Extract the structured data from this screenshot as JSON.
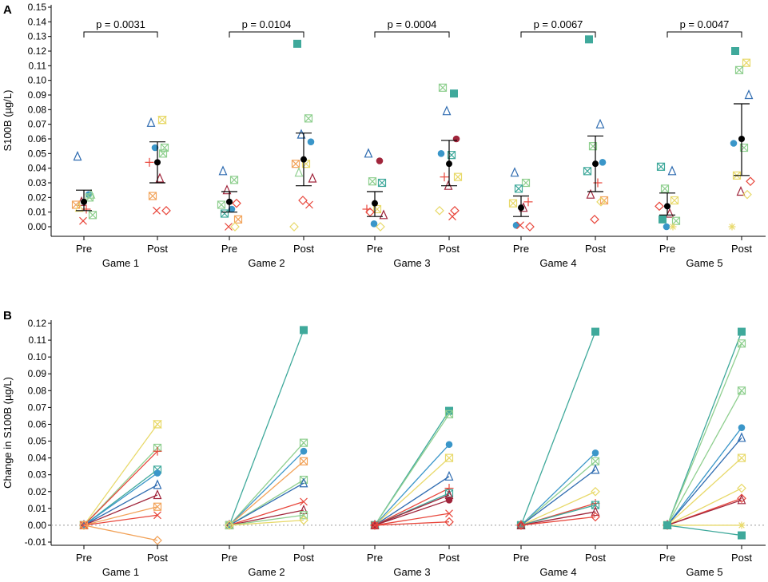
{
  "colors": [
    "#2e6bb0",
    "#3fa99b",
    "#8fcf8f",
    "#f2a35a",
    "#e8473c",
    "#a0253b",
    "#3a96c9",
    "#e8d96a"
  ],
  "chart_data": [
    {
      "panel": "A",
      "type": "scatter",
      "ylabel": "S100B (µg/L)",
      "ylim": [
        0,
        0.15
      ],
      "ytick_labels": [
        "0.00",
        "0.01",
        "0.02",
        "0.03",
        "0.04",
        "0.05",
        "0.06",
        "0.07",
        "0.08",
        "0.09",
        "0.10",
        "0.11",
        "0.12",
        "0.13",
        "0.14",
        "0.15"
      ],
      "categories": [
        "Pre",
        "Post"
      ],
      "games": [
        {
          "name": "Game 1",
          "p_label": "p = 0.0031",
          "pre": {
            "mean": 0.017,
            "err": [
              0.011,
              0.025
            ],
            "points": [
              [
                0.048,
                "tri",
                0
              ],
              [
                0.022,
                "circ",
                6
              ],
              [
                0.017,
                "tri",
                5
              ],
              [
                0.022,
                "tri",
                2
              ],
              [
                0.015,
                "box",
                3
              ],
              [
                0.012,
                "plus",
                4
              ],
              [
                0.013,
                "tri",
                7
              ],
              [
                0.008,
                "box",
                2
              ],
              [
                0.004,
                "x",
                4
              ],
              [
                0.02,
                "box",
                2
              ]
            ]
          },
          "post": {
            "mean": 0.044,
            "err": [
              0.03,
              0.058
            ],
            "points": [
              [
                0.071,
                "tri",
                0
              ],
              [
                0.073,
                "hour",
                7
              ],
              [
                0.054,
                "circ",
                6
              ],
              [
                0.054,
                "box",
                2
              ],
              [
                0.044,
                "plus",
                4
              ],
              [
                0.033,
                "tri",
                5
              ],
              [
                0.021,
                "box",
                3
              ],
              [
                0.011,
                "dia",
                4
              ],
              [
                0.011,
                "x",
                4
              ],
              [
                0.05,
                "box",
                2
              ]
            ]
          }
        },
        {
          "name": "Game 2",
          "p_label": "p = 0.0104",
          "pre": {
            "mean": 0.017,
            "err": [
              0.01,
              0.024
            ],
            "points": [
              [
                0.038,
                "tri",
                0
              ],
              [
                0.032,
                "box",
                2
              ],
              [
                0.025,
                "tri",
                5
              ],
              [
                0.016,
                "dia",
                4
              ],
              [
                0.015,
                "box",
                2
              ],
              [
                0.012,
                "circ",
                6
              ],
              [
                0.009,
                "box",
                1
              ],
              [
                0.005,
                "box",
                3
              ],
              [
                0.0,
                "x",
                4
              ],
              [
                0.0,
                "dia",
                7
              ]
            ]
          },
          "post": {
            "mean": 0.046,
            "err": [
              0.028,
              0.064
            ],
            "points": [
              [
                0.125,
                "sq",
                1
              ],
              [
                0.074,
                "box",
                2
              ],
              [
                0.063,
                "tri",
                0
              ],
              [
                0.058,
                "circ",
                6
              ],
              [
                0.043,
                "box",
                3
              ],
              [
                0.043,
                "box",
                7
              ],
              [
                0.037,
                "tri",
                2
              ],
              [
                0.033,
                "tri",
                5
              ],
              [
                0.018,
                "dia",
                4
              ],
              [
                0.015,
                "x",
                4
              ],
              [
                0.0,
                "dia",
                7
              ]
            ]
          }
        },
        {
          "name": "Game 3",
          "p_label": "p = 0.0004",
          "pre": {
            "mean": 0.016,
            "err": [
              0.007,
              0.024
            ],
            "points": [
              [
                0.05,
                "tri",
                0
              ],
              [
                0.045,
                "circ",
                5
              ],
              [
                0.031,
                "box",
                2
              ],
              [
                0.03,
                "box",
                1
              ],
              [
                0.012,
                "plus",
                4
              ],
              [
                0.012,
                "box",
                7
              ],
              [
                0.01,
                "dia",
                4
              ],
              [
                0.008,
                "tri",
                5
              ],
              [
                0.002,
                "circ",
                6
              ],
              [
                0.0,
                "dia",
                7
              ]
            ]
          },
          "post": {
            "mean": 0.043,
            "err": [
              0.028,
              0.059
            ],
            "points": [
              [
                0.095,
                "box",
                2
              ],
              [
                0.091,
                "sq",
                1
              ],
              [
                0.079,
                "tri",
                0
              ],
              [
                0.06,
                "circ",
                5
              ],
              [
                0.05,
                "circ",
                6
              ],
              [
                0.049,
                "box",
                1
              ],
              [
                0.034,
                "plus",
                4
              ],
              [
                0.034,
                "box",
                7
              ],
              [
                0.028,
                "tri",
                5
              ],
              [
                0.011,
                "dia",
                4
              ],
              [
                0.011,
                "dia",
                7
              ],
              [
                0.007,
                "x",
                4
              ]
            ]
          }
        },
        {
          "name": "Game 4",
          "p_label": "p = 0.0067",
          "pre": {
            "mean": 0.013,
            "err": [
              0.007,
              0.021
            ],
            "points": [
              [
                0.037,
                "tri",
                0
              ],
              [
                0.03,
                "box",
                2
              ],
              [
                0.026,
                "box",
                1
              ],
              [
                0.017,
                "plus",
                4
              ],
              [
                0.016,
                "box",
                7
              ],
              [
                0.013,
                "tri",
                5
              ],
              [
                0.001,
                "circ",
                6
              ],
              [
                0.0,
                "dia",
                4
              ],
              [
                0.001,
                "x",
                4
              ]
            ]
          },
          "post": {
            "mean": 0.043,
            "err": [
              0.024,
              0.062
            ],
            "points": [
              [
                0.128,
                "sq",
                1
              ],
              [
                0.07,
                "tri",
                0
              ],
              [
                0.055,
                "box",
                2
              ],
              [
                0.044,
                "circ",
                6
              ],
              [
                0.038,
                "box",
                1
              ],
              [
                0.03,
                "plus",
                4
              ],
              [
                0.022,
                "tri",
                5
              ],
              [
                0.018,
                "box",
                3
              ],
              [
                0.005,
                "dia",
                4
              ],
              [
                0.017,
                "dia",
                7
              ]
            ]
          }
        },
        {
          "name": "Game 5",
          "p_label": "p = 0.0047",
          "pre": {
            "mean": 0.014,
            "err": [
              0.008,
              0.023
            ],
            "points": [
              [
                0.041,
                "box",
                1
              ],
              [
                0.038,
                "tri",
                0
              ],
              [
                0.026,
                "box",
                2
              ],
              [
                0.018,
                "box",
                7
              ],
              [
                0.014,
                "dia",
                4
              ],
              [
                0.009,
                "tri",
                5
              ],
              [
                0.005,
                "sq",
                1
              ],
              [
                0.004,
                "box",
                2
              ],
              [
                0.0,
                "circ",
                6
              ],
              [
                0.0,
                "star",
                7
              ]
            ]
          },
          "post": {
            "mean": 0.06,
            "err": [
              0.035,
              0.084
            ],
            "points": [
              [
                0.12,
                "sq",
                1
              ],
              [
                0.112,
                "box",
                7
              ],
              [
                0.107,
                "box",
                2
              ],
              [
                0.09,
                "tri",
                0
              ],
              [
                0.057,
                "circ",
                6
              ],
              [
                0.054,
                "box",
                2
              ],
              [
                0.035,
                "box",
                7
              ],
              [
                0.031,
                "dia",
                4
              ],
              [
                0.024,
                "tri",
                5
              ],
              [
                0.022,
                "dia",
                7
              ],
              [
                0.0,
                "star",
                7
              ]
            ]
          }
        }
      ]
    },
    {
      "panel": "B",
      "type": "line",
      "ylabel": "Change in S100B (µg/L)",
      "ylim": [
        -0.01,
        0.12
      ],
      "ytick_labels": [
        "-0.01",
        "0.00",
        "0.01",
        "0.02",
        "0.03",
        "0.04",
        "0.05",
        "0.06",
        "0.07",
        "0.08",
        "0.09",
        "0.10",
        "0.11",
        "0.12"
      ],
      "categories": [
        "Pre",
        "Post"
      ],
      "games": [
        {
          "name": "Game 1",
          "series": [
            [
              0.06,
              "hour",
              7
            ],
            [
              0.046,
              "box",
              2
            ],
            [
              0.044,
              "plus",
              4
            ],
            [
              0.033,
              "box",
              1
            ],
            [
              0.031,
              "circ",
              6
            ],
            [
              0.024,
              "tri",
              0
            ],
            [
              0.018,
              "tri",
              5
            ],
            [
              0.011,
              "box",
              3
            ],
            [
              0.006,
              "x",
              4
            ],
            [
              -0.009,
              "dia",
              3
            ]
          ]
        },
        {
          "name": "Game 2",
          "series": [
            [
              0.116,
              "sq",
              1
            ],
            [
              0.049,
              "box",
              2
            ],
            [
              0.044,
              "circ",
              6
            ],
            [
              0.038,
              "box",
              3
            ],
            [
              0.027,
              "box",
              2
            ],
            [
              0.025,
              "tri",
              0
            ],
            [
              0.014,
              "x",
              4
            ],
            [
              0.009,
              "tri",
              5
            ],
            [
              0.006,
              "box",
              2
            ],
            [
              0.003,
              "dia",
              7
            ]
          ]
        },
        {
          "name": "Game 3",
          "series": [
            [
              0.068,
              "sq",
              1
            ],
            [
              0.066,
              "box",
              2
            ],
            [
              0.048,
              "circ",
              6
            ],
            [
              0.04,
              "box",
              7
            ],
            [
              0.029,
              "tri",
              0
            ],
            [
              0.022,
              "plus",
              4
            ],
            [
              0.019,
              "box",
              1
            ],
            [
              0.018,
              "tri",
              5
            ],
            [
              0.015,
              "circ",
              5
            ],
            [
              0.007,
              "x",
              4
            ],
            [
              0.002,
              "dia",
              4
            ]
          ]
        },
        {
          "name": "Game 4",
          "series": [
            [
              0.115,
              "sq",
              1
            ],
            [
              0.043,
              "circ",
              6
            ],
            [
              0.038,
              "box",
              2
            ],
            [
              0.033,
              "tri",
              0
            ],
            [
              0.02,
              "dia",
              7
            ],
            [
              0.013,
              "plus",
              4
            ],
            [
              0.012,
              "box",
              1
            ],
            [
              0.008,
              "tri",
              5
            ],
            [
              0.005,
              "dia",
              4
            ]
          ]
        },
        {
          "name": "Game 5",
          "series": [
            [
              0.115,
              "sq",
              1
            ],
            [
              0.108,
              "box",
              2
            ],
            [
              0.08,
              "box",
              2
            ],
            [
              0.058,
              "circ",
              6
            ],
            [
              0.052,
              "tri",
              0
            ],
            [
              0.04,
              "box",
              7
            ],
            [
              0.022,
              "dia",
              7
            ],
            [
              0.016,
              "dia",
              4
            ],
            [
              0.015,
              "tri",
              5
            ],
            [
              0.0,
              "star",
              7
            ],
            [
              -0.006,
              "sq",
              1
            ]
          ]
        }
      ]
    }
  ]
}
